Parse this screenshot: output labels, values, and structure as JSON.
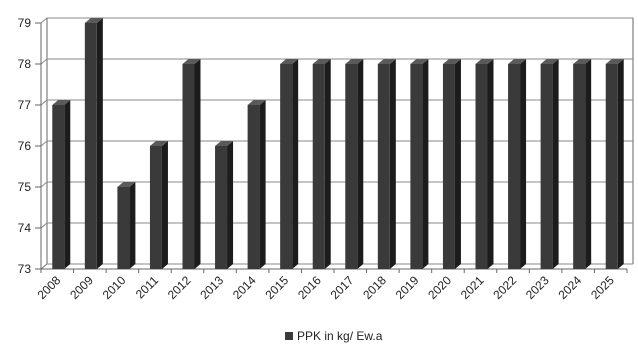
{
  "chart_data": {
    "type": "bar",
    "categories": [
      "2008",
      "2009",
      "2010",
      "2011",
      "2012",
      "2013",
      "2014",
      "2015",
      "2016",
      "2017",
      "2018",
      "2019",
      "2020",
      "2021",
      "2022",
      "2023",
      "2024",
      "2025"
    ],
    "series": [
      {
        "name": "PPK in kg/ Ew.a",
        "values": [
          77,
          79,
          75,
          76,
          78,
          76,
          77,
          78,
          78,
          78,
          78,
          78,
          78,
          78,
          78,
          78,
          78,
          78
        ]
      }
    ],
    "title": "",
    "xlabel": "",
    "ylabel": "",
    "ylim": [
      73,
      79
    ],
    "yticks": [
      73,
      74,
      75,
      76,
      77,
      78,
      79
    ],
    "grid": true,
    "legend_position": "bottom-center",
    "colors": {
      "bar_front": "#3a3a3a",
      "bar_side": "#1c1c1c",
      "bar_top": "#5a5a5a",
      "grid": "#8a8a8a",
      "axis": "#666666"
    }
  }
}
